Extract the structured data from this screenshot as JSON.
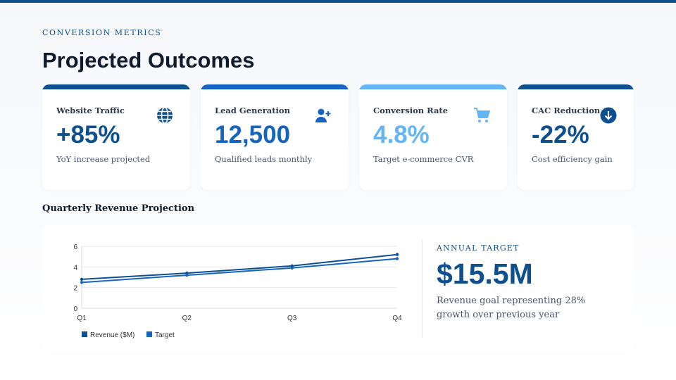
{
  "header": {
    "eyebrow": "CONVERSION METRICS",
    "title": "Projected Outcomes"
  },
  "cards": [
    {
      "label": "Website Traffic",
      "value": "+85%",
      "sub": "YoY increase projected",
      "icon": "globe-icon",
      "color": "#0d4f8f"
    },
    {
      "label": "Lead Generation",
      "value": "12,500",
      "sub": "Qualified leads monthly",
      "icon": "user-plus-icon",
      "color": "#1565c0"
    },
    {
      "label": "Conversion Rate",
      "value": "4.8%",
      "sub": "Target e-commerce CVR",
      "icon": "shopping-cart-icon",
      "color": "#64b5f6"
    },
    {
      "label": "CAC Reduction",
      "value": "-22%",
      "sub": "Cost efficiency gain",
      "icon": "arrow-down-circle-icon",
      "color": "#0d4f8f"
    }
  ],
  "section_title": "Quarterly Revenue Projection",
  "annual": {
    "label": "ANNUAL TARGET",
    "value": "$15.5M",
    "desc": "Revenue goal representing 28% growth over previous year"
  },
  "chart_data": {
    "type": "line",
    "categories": [
      "Q1",
      "Q2",
      "Q3",
      "Q4"
    ],
    "series": [
      {
        "name": "Revenue ($M)",
        "values": [
          2.8,
          3.4,
          4.1,
          5.2
        ],
        "color": "#0d4f8f"
      },
      {
        "name": "Target",
        "values": [
          2.5,
          3.2,
          3.9,
          4.8
        ],
        "color": "#1565c0"
      }
    ],
    "ylim": [
      0,
      6
    ],
    "yticks": [
      0,
      2,
      4,
      6
    ],
    "grid": true,
    "legend": "bottom-left"
  }
}
